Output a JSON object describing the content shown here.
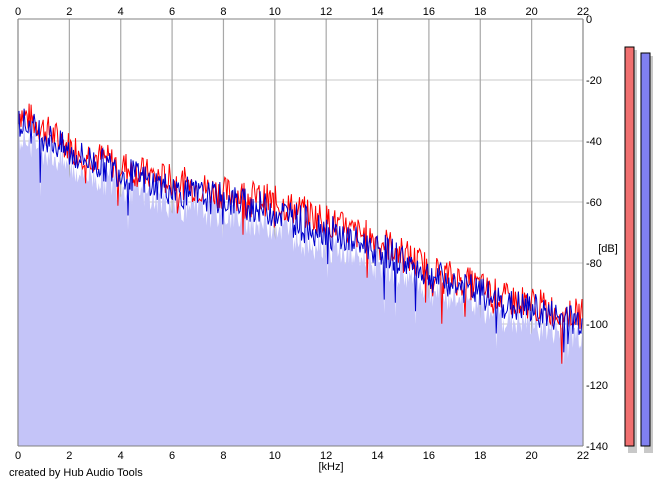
{
  "credit": "created by Hub Audio Tools",
  "chart_data": {
    "type": "line",
    "title": "",
    "xlabel": "[kHz]",
    "ylabel": "[dB]",
    "xlim": [
      0,
      22
    ],
    "ylim": [
      -140,
      0
    ],
    "x_ticks": [
      "0",
      "2",
      "4",
      "6",
      "8",
      "10",
      "12",
      "14",
      "16",
      "18",
      "20",
      "22"
    ],
    "y_ticks": [
      "0",
      "-20",
      "-40",
      "-60",
      "-80",
      "-100",
      "-120",
      "-140"
    ],
    "grid": true,
    "fill_color": "#c4c4f8",
    "series": [
      {
        "color": "#ff0000",
        "x": [
          0,
          1,
          2,
          3,
          4,
          5,
          6,
          7,
          8,
          9,
          10,
          11,
          12,
          13,
          14,
          15,
          16,
          17,
          18,
          19,
          20,
          21,
          22
        ],
        "values": [
          -30,
          -36,
          -42,
          -45,
          -48,
          -51,
          -53,
          -55,
          -57,
          -58,
          -60,
          -63,
          -66,
          -70,
          -72,
          -77,
          -82,
          -85,
          -88,
          -92,
          -93,
          -96,
          -97
        ]
      },
      {
        "color": "#0000cc",
        "x": [
          0,
          1,
          2,
          3,
          4,
          5,
          6,
          7,
          8,
          9,
          10,
          11,
          12,
          13,
          14,
          15,
          16,
          17,
          18,
          19,
          20,
          21,
          22
        ],
        "values": [
          -33,
          -38,
          -44,
          -47,
          -50,
          -53,
          -56,
          -58,
          -59,
          -61,
          -63,
          -66,
          -69,
          -73,
          -75,
          -79,
          -84,
          -87,
          -90,
          -94,
          -95,
          -98,
          -99
        ]
      }
    ],
    "level_meters": [
      {
        "color": "#f07070",
        "level": 0.93
      },
      {
        "color": "#8080f0",
        "level": 0.92
      }
    ]
  }
}
